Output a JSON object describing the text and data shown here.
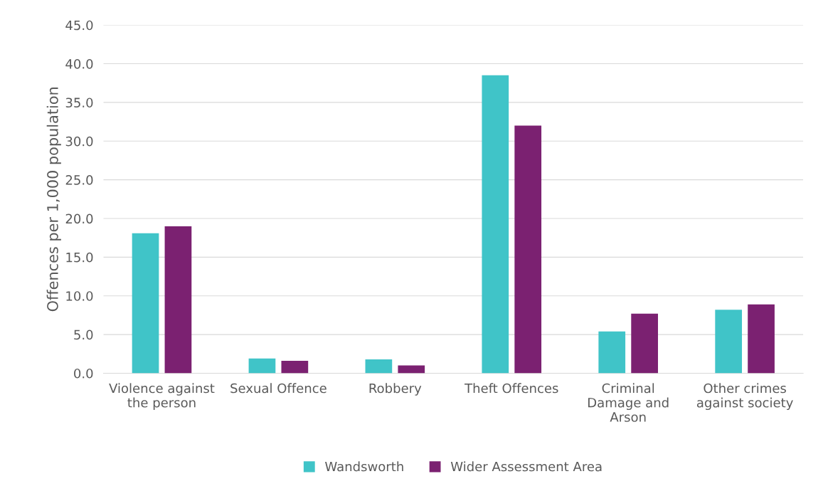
{
  "chart_data": {
    "type": "bar",
    "ylabel": "Offences per 1,000 population",
    "categories": [
      "Violence against\nthe person",
      "Sexual Offence",
      "Robbery",
      "Theft Offences",
      "Criminal\nDamage and\nArson",
      "Other crimes\nagainst society"
    ],
    "series": [
      {
        "name": "Wandsworth",
        "color": "#40c4c8",
        "values": [
          18.1,
          1.9,
          1.8,
          38.5,
          5.4,
          8.2
        ]
      },
      {
        "name": "Wider Assessment Area",
        "color": "#7b2171",
        "values": [
          19.0,
          1.6,
          1.0,
          32.0,
          7.7,
          8.9
        ]
      }
    ],
    "ylim": [
      0,
      45
    ],
    "yticks": [
      {
        "value": 0,
        "label": "0.0"
      },
      {
        "value": 5,
        "label": "5.0"
      },
      {
        "value": 10,
        "label": "10.0"
      },
      {
        "value": 15,
        "label": "15.0"
      },
      {
        "value": 20,
        "label": "20.0"
      },
      {
        "value": 25,
        "label": "25.0"
      },
      {
        "value": 30,
        "label": "30.0"
      },
      {
        "value": 35,
        "label": "35.0"
      },
      {
        "value": 40,
        "label": "40.0"
      },
      {
        "value": 45,
        "label": "45.0"
      }
    ],
    "grid": "y",
    "legend": "bottom"
  }
}
